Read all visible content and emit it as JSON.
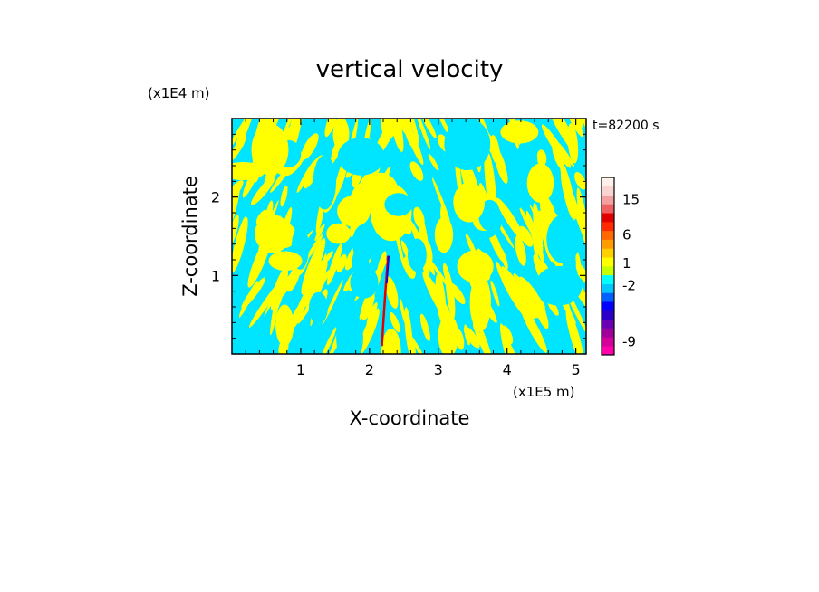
{
  "chart_data": {
    "type": "heatmap",
    "title": "vertical velocity",
    "xlabel": "X-coordinate",
    "ylabel": "Z-coordinate",
    "x_unit": "(x1E5 m)",
    "y_unit": "(x1E4 m)",
    "time_label": "t=82200 s",
    "xlim": [
      0,
      5.15
    ],
    "ylim": [
      0,
      3.0
    ],
    "x_ticks": [
      1,
      2,
      3,
      4,
      5
    ],
    "y_ticks": [
      1,
      2
    ],
    "x_tick_labels": [
      "1",
      "2",
      "3",
      "4",
      "5"
    ],
    "y_tick_labels": [
      "1",
      "2"
    ],
    "field_colors": {
      "positive": "#ffff00",
      "negative": "#00e5ff"
    },
    "colorbar": {
      "levels": [
        {
          "color": "#ff00aa"
        },
        {
          "color": "#d4009a"
        },
        {
          "color": "#a0009a"
        },
        {
          "color": "#6a00b4"
        },
        {
          "color": "#2a00c8"
        },
        {
          "color": "#0000ff"
        },
        {
          "color": "#0060ff"
        },
        {
          "color": "#00c8ff"
        },
        {
          "color": "#00ffff"
        },
        {
          "color": "#c8ff00"
        },
        {
          "color": "#ffff00"
        },
        {
          "color": "#ffd000"
        },
        {
          "color": "#ff9a00"
        },
        {
          "color": "#ff6a00"
        },
        {
          "color": "#ff2a00"
        },
        {
          "color": "#e00000"
        },
        {
          "color": "#f06060"
        },
        {
          "color": "#f5a0a0"
        },
        {
          "color": "#fad4d0"
        },
        {
          "color": "#fff0ec"
        }
      ],
      "tick_labels": [
        {
          "label": "-9",
          "level_index": 1
        },
        {
          "label": "-2",
          "level_index": 7.3
        },
        {
          "label": "1",
          "level_index": 9.8
        },
        {
          "label": "6",
          "level_index": 13
        },
        {
          "label": "15",
          "level_index": 17
        }
      ]
    }
  }
}
